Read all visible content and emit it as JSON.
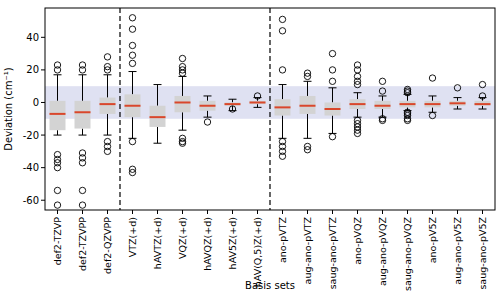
{
  "chart_data": {
    "type": "box",
    "x_label": "Basis sets",
    "y_label": "Deviation (cm⁻¹)",
    "categories": [
      "def2-TZVP",
      "def2-TZVPP",
      "def2-QZVPP",
      "VTZ(+d)",
      "hAVTZ(+d)",
      "VQZ(+d)",
      "hAVQZ(+d)",
      "hAV5Z(+d)",
      "hAV(Q,5)Z(+d)",
      "ano-pVTZ",
      "aug-ano-pVTZ",
      "saug-ano-pVTZ",
      "ano-pVQZ",
      "aug-ano-pVQZ",
      "saug-ano-pVQZ",
      "ano-pV5Z",
      "aug-ano-pV5Z",
      "saug-ano-pV5Z"
    ],
    "boxes": [
      {
        "whislo": -20,
        "q1": -17,
        "median": -7,
        "q3": 1,
        "whishi": 17,
        "fliers": [
          20,
          23,
          -32,
          -35,
          -37,
          -40,
          -54,
          -63
        ]
      },
      {
        "whislo": -20,
        "q1": -16,
        "median": -6,
        "q3": 1,
        "whishi": 17,
        "fliers": [
          20,
          23,
          -31,
          -34,
          -37,
          -54,
          -63
        ]
      },
      {
        "whislo": -20,
        "q1": -7,
        "median": -1,
        "q3": 3,
        "whishi": 17,
        "fliers": [
          20,
          22,
          28,
          -24,
          -27,
          -30
        ]
      },
      {
        "whislo": -22,
        "q1": -9,
        "median": -2,
        "q3": 5,
        "whishi": 19,
        "fliers": [
          24,
          29,
          35,
          45,
          52,
          -24,
          -41,
          -43
        ]
      },
      {
        "whislo": -25,
        "q1": -15,
        "median": -9,
        "q3": -2,
        "whishi": 11,
        "fliers": []
      },
      {
        "whislo": -17,
        "q1": -6,
        "median": 0,
        "q3": 4,
        "whishi": 16,
        "fliers": [
          18,
          20,
          22,
          27,
          -22,
          -24,
          -25
        ]
      },
      {
        "whislo": -9,
        "q1": -5,
        "median": -2,
        "q3": 1,
        "whishi": 4,
        "fliers": [
          -12
        ]
      },
      {
        "whislo": -5,
        "q1": -2,
        "median": -1,
        "q3": 0,
        "whishi": 2,
        "fliers": [
          -4
        ]
      },
      {
        "whislo": -3,
        "q1": -1,
        "median": 0,
        "q3": 1,
        "whishi": 3,
        "fliers": [
          4
        ]
      },
      {
        "whislo": -22,
        "q1": -8,
        "median": -3,
        "q3": 2,
        "whishi": 11,
        "fliers": [
          20,
          44,
          51,
          -24,
          -27,
          -30,
          -33
        ]
      },
      {
        "whislo": -22,
        "q1": -7,
        "median": -2,
        "q3": 4,
        "whishi": 13,
        "fliers": [
          16,
          18,
          -27,
          -29
        ]
      },
      {
        "whislo": -19,
        "q1": -8,
        "median": -4,
        "q3": 0,
        "whishi": 9,
        "fliers": [
          13,
          20,
          30,
          -21
        ]
      },
      {
        "whislo": -9,
        "q1": -4,
        "median": -1,
        "q3": 2,
        "whishi": 6,
        "fliers": [
          11,
          13,
          16,
          20,
          23,
          -11,
          -13,
          -15,
          -17,
          -19
        ]
      },
      {
        "whislo": -9,
        "q1": -4,
        "median": -2,
        "q3": 1,
        "whishi": 4,
        "fliers": [
          7,
          13,
          -10,
          -11
        ]
      },
      {
        "whislo": -5,
        "q1": -3,
        "median": -1,
        "q3": 1,
        "whishi": 5,
        "fliers": [
          6,
          7,
          8,
          -6,
          -7,
          -8,
          -10,
          -11
        ]
      },
      {
        "whislo": -6,
        "q1": -3,
        "median": -1,
        "q3": 1,
        "whishi": 4,
        "fliers": [
          15,
          -8
        ]
      },
      {
        "whislo": -4,
        "q1": -2,
        "median": -0.5,
        "q3": 1,
        "whishi": 3,
        "fliers": [
          9
        ]
      },
      {
        "whislo": -4,
        "q1": -2,
        "median": -1,
        "q3": 1,
        "whishi": 3,
        "fliers": [
          4,
          11
        ]
      }
    ],
    "band": [
      -10,
      10
    ],
    "ylim": [
      -66,
      58
    ],
    "yticks": [
      -60,
      -40,
      -20,
      0,
      20,
      40
    ],
    "color": "#d3d3d3",
    "median_color": "#d9472b",
    "band_color": "#dfe1f2"
  }
}
